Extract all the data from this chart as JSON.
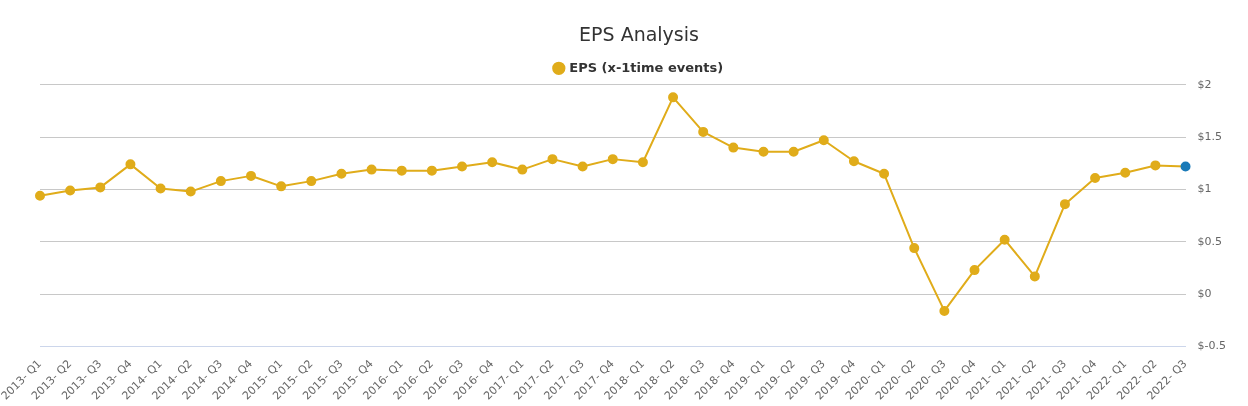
{
  "chart_data": {
    "type": "line",
    "title": "EPS Analysis",
    "categories": [
      "2013- Q1",
      "2013- Q2",
      "2013- Q3",
      "2013- Q4",
      "2014- Q1",
      "2014- Q2",
      "2014- Q3",
      "2014- Q4",
      "2015- Q1",
      "2015- Q2",
      "2015- Q3",
      "2015- Q4",
      "2016- Q1",
      "2016- Q2",
      "2016- Q3",
      "2016- Q4",
      "2017- Q1",
      "2017- Q2",
      "2017- Q3",
      "2017- Q4",
      "2018- Q1",
      "2018- Q2",
      "2018- Q3",
      "2018- Q4",
      "2019- Q1",
      "2019- Q2",
      "2019- Q3",
      "2019- Q4",
      "2020- Q1",
      "2020- Q2",
      "2020- Q3",
      "2020- Q4",
      "2021- Q1",
      "2021- Q2",
      "2021- Q3",
      "2021- Q4",
      "2022- Q1",
      "2022- Q2",
      "2022- Q3"
    ],
    "series": [
      {
        "name": "EPS (x-1time events)",
        "color": "#e0ac1a",
        "colors": [
          "#e0ac1a",
          "#e0ac1a",
          "#e0ac1a",
          "#e0ac1a",
          "#e0ac1a",
          "#e0ac1a",
          "#e0ac1a",
          "#e0ac1a",
          "#e0ac1a",
          "#e0ac1a",
          "#e0ac1a",
          "#e0ac1a",
          "#e0ac1a",
          "#e0ac1a",
          "#e0ac1a",
          "#e0ac1a",
          "#e0ac1a",
          "#e0ac1a",
          "#e0ac1a",
          "#e0ac1a",
          "#e0ac1a",
          "#e0ac1a",
          "#e0ac1a",
          "#e0ac1a",
          "#e0ac1a",
          "#e0ac1a",
          "#e0ac1a",
          "#e0ac1a",
          "#e0ac1a",
          "#e0ac1a",
          "#e0ac1a",
          "#e0ac1a",
          "#e0ac1a",
          "#e0ac1a",
          "#e0ac1a",
          "#e0ac1a",
          "#e0ac1a",
          "#e0ac1a",
          "#1a7ab8"
        ],
        "values": [
          0.94,
          0.99,
          1.02,
          1.24,
          1.01,
          0.98,
          1.08,
          1.13,
          1.03,
          1.08,
          1.15,
          1.19,
          1.18,
          1.18,
          1.22,
          1.26,
          1.19,
          1.29,
          1.22,
          1.29,
          1.26,
          1.88,
          1.55,
          1.4,
          1.36,
          1.36,
          1.47,
          1.27,
          1.15,
          0.44,
          -0.16,
          0.23,
          0.52,
          0.17,
          0.86,
          1.11,
          1.16,
          1.23,
          1.22
        ]
      }
    ],
    "ylim": [
      -0.5,
      2
    ],
    "yticks": [
      {
        "value": -0.5,
        "label": "$-0.5"
      },
      {
        "value": 0,
        "label": "$0"
      },
      {
        "value": 0.5,
        "label": "$0.5"
      },
      {
        "value": 1,
        "label": "$1"
      },
      {
        "value": 1.5,
        "label": "$1.5"
      },
      {
        "value": 2,
        "label": "$2"
      }
    ],
    "grid": "y",
    "legend": "top",
    "marker": "circle",
    "line_style": "solid"
  }
}
